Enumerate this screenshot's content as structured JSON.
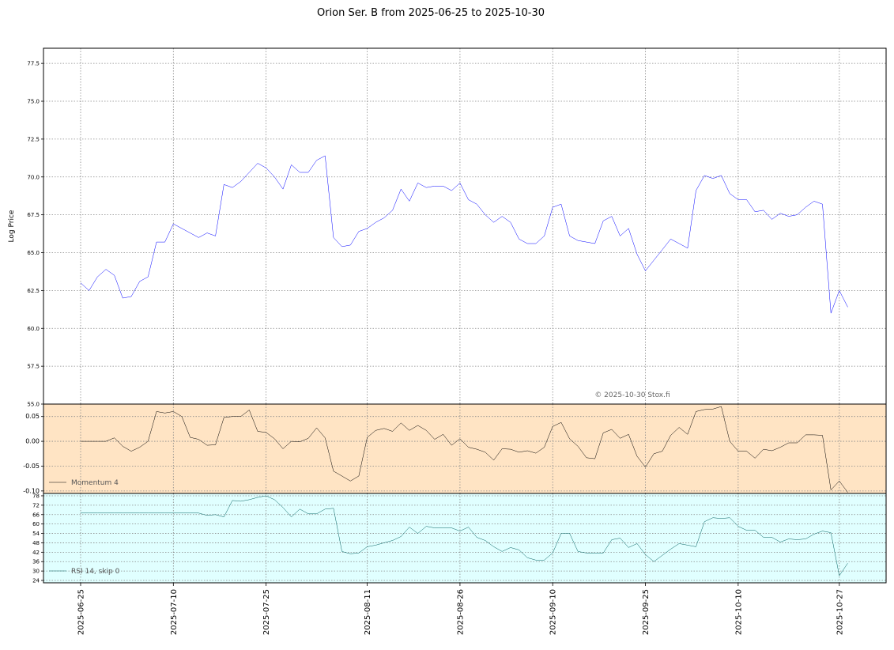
{
  "chart_data": {
    "type": "line",
    "title": "Orion Ser. B from 2025-06-25 to 2025-10-30",
    "watermark": "© 2025-10-30 Stox.fi",
    "x_ticks": [
      "2025-06-25",
      "2025-07-10",
      "2025-07-25",
      "2025-08-11",
      "2025-08-26",
      "2025-09-10",
      "2025-09-25",
      "2025-10-10",
      "2025-10-27"
    ],
    "price_panel": {
      "ylabel": "Log Price",
      "ylim": [
        55.0,
        78.5
      ],
      "yticks": [
        "55.0",
        "57.5",
        "60.0",
        "62.5",
        "65.0",
        "67.5",
        "70.0",
        "72.5",
        "75.0",
        "77.5"
      ],
      "grid": true,
      "color": "#0000ff",
      "values": [
        63.0,
        62.5,
        63.4,
        63.9,
        63.5,
        62.0,
        62.1,
        63.1,
        63.4,
        65.7,
        65.7,
        66.9,
        66.6,
        66.3,
        66.0,
        66.3,
        66.1,
        69.5,
        69.3,
        69.7,
        70.3,
        70.9,
        70.6,
        70.0,
        69.2,
        70.8,
        70.3,
        70.3,
        71.1,
        71.4,
        66.0,
        65.4,
        65.5,
        66.4,
        66.6,
        67.0,
        67.3,
        67.8,
        69.2,
        68.4,
        69.6,
        69.3,
        69.4,
        69.4,
        69.1,
        69.6,
        68.5,
        68.2,
        67.5,
        67.0,
        67.4,
        67.0,
        65.9,
        65.6,
        65.6,
        66.1,
        68.0,
        68.2,
        66.1,
        65.8,
        65.7,
        65.6,
        67.1,
        67.4,
        66.1,
        66.6,
        64.9,
        63.8,
        64.5,
        65.2,
        65.9,
        65.6,
        65.3,
        69.1,
        70.1,
        69.9,
        70.1,
        68.9,
        68.5,
        68.5,
        67.7,
        67.8,
        67.2,
        67.6,
        67.4,
        67.5,
        68.0,
        68.4,
        68.2,
        61.0,
        62.5,
        61.4
      ]
    },
    "momentum_panel": {
      "legend": "Momentum 4",
      "ylim": [
        -0.105,
        0.075
      ],
      "yticks": [
        "-0.10",
        "-0.05",
        "0.00",
        "0.05"
      ],
      "grid": true,
      "background": "#ffe4c4",
      "color": "#000000",
      "values": [
        0.0,
        0.0,
        0.0,
        0.0,
        0.007,
        -0.01,
        -0.02,
        -0.012,
        0.0,
        0.06,
        0.057,
        0.06,
        0.05,
        0.008,
        0.004,
        -0.008,
        -0.007,
        0.048,
        0.05,
        0.05,
        0.063,
        0.02,
        0.018,
        0.005,
        -0.015,
        0.0,
        -0.001,
        0.006,
        0.027,
        0.007,
        -0.06,
        -0.07,
        -0.08,
        -0.07,
        0.008,
        0.022,
        0.026,
        0.02,
        0.037,
        0.022,
        0.032,
        0.022,
        0.004,
        0.014,
        -0.008,
        0.005,
        -0.012,
        -0.016,
        -0.022,
        -0.038,
        -0.015,
        -0.016,
        -0.022,
        -0.019,
        -0.024,
        -0.012,
        0.03,
        0.038,
        0.005,
        -0.01,
        -0.033,
        -0.035,
        0.017,
        0.024,
        0.006,
        0.014,
        -0.03,
        -0.052,
        -0.025,
        -0.02,
        0.012,
        0.028,
        0.014,
        0.06,
        0.064,
        0.065,
        0.07,
        0.0,
        -0.02,
        -0.02,
        -0.034,
        -0.016,
        -0.019,
        -0.012,
        -0.003,
        -0.003,
        0.013,
        0.013,
        0.012,
        -0.098,
        -0.08,
        -0.103
      ]
    },
    "rsi_panel": {
      "legend": "RSI 14, skip 0",
      "ylim": [
        22.5,
        79.5
      ],
      "yticks": [
        "24",
        "30",
        "36",
        "42",
        "48",
        "54",
        "60",
        "66",
        "72",
        "78"
      ],
      "grid": true,
      "background": "#e0ffff",
      "color": "#006060",
      "values": [
        67,
        67,
        67,
        67,
        67,
        67,
        67,
        67,
        67,
        67,
        67,
        67,
        67,
        67,
        67,
        65.5,
        66,
        64.5,
        75,
        74.5,
        75.5,
        77,
        78,
        75.5,
        70.5,
        64.5,
        69.5,
        66.5,
        66.5,
        69.5,
        70,
        42.5,
        41,
        41.5,
        45.5,
        46.5,
        48,
        49.5,
        52,
        58,
        54,
        58.5,
        57.5,
        57.5,
        57.5,
        55.5,
        58,
        51.5,
        49.5,
        45.5,
        42.5,
        45,
        43.5,
        38.5,
        37,
        37,
        41.5,
        54,
        54,
        42.5,
        41.5,
        41.5,
        41.5,
        50,
        51,
        45,
        47.5,
        40.5,
        36,
        40,
        44,
        47.5,
        46.5,
        45.5,
        61.5,
        64,
        63.5,
        64,
        58.5,
        56,
        56,
        51.5,
        51.5,
        48.5,
        50.5,
        50,
        50.5,
        53.5,
        55.5,
        54.5,
        27,
        35
      ]
    }
  }
}
